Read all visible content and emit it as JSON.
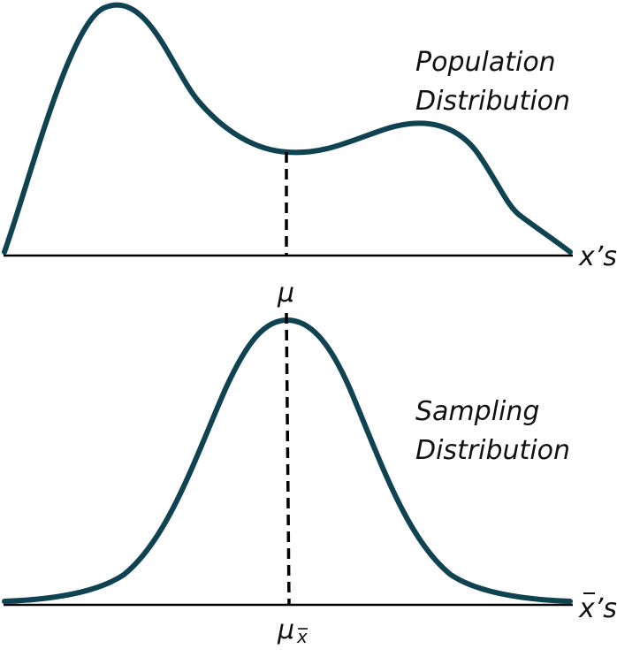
{
  "colors": {
    "curve": "#0f4352",
    "axis": "#000000",
    "dash": "#000000",
    "text": "#111111"
  },
  "population": {
    "title_line1": "Population",
    "title_line2": "Distribution",
    "axis_label_var": "x",
    "axis_label_suffix": "’s",
    "mean_label": "μ"
  },
  "sampling": {
    "title_line1": "Sampling",
    "title_line2": "Distribution",
    "axis_label_var": "x",
    "axis_label_suffix": "’s",
    "mean_label": "μ",
    "mean_subscript": "x"
  }
}
